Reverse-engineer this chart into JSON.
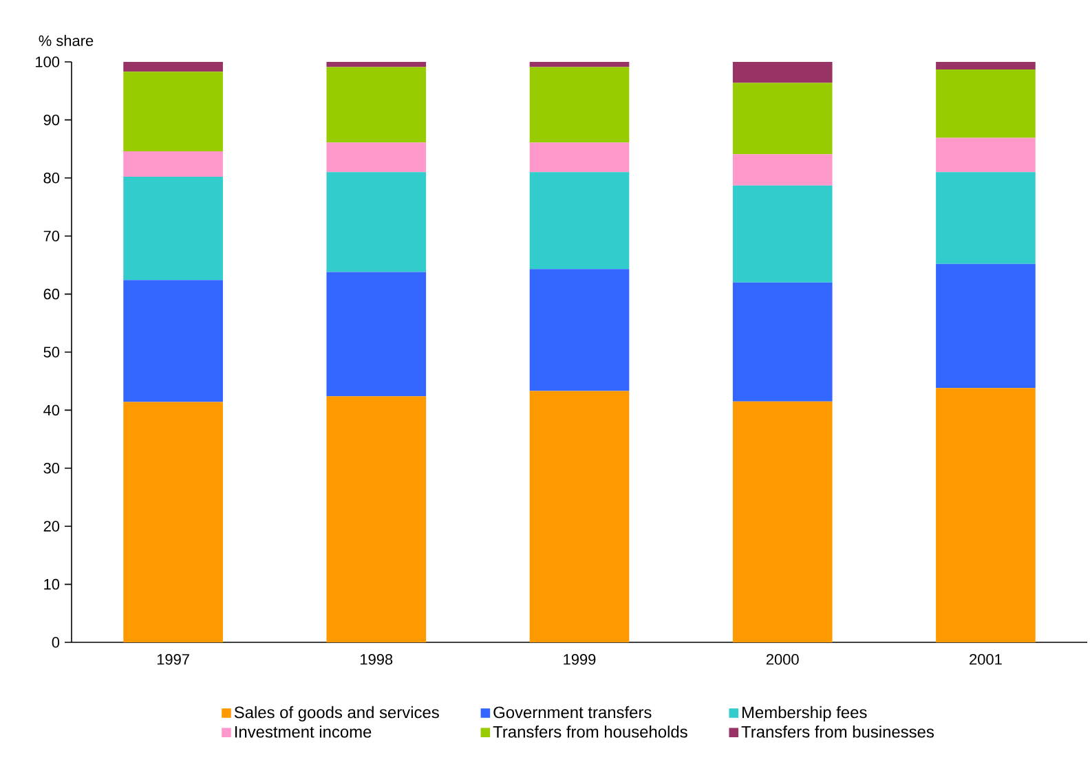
{
  "chart_data": {
    "type": "bar",
    "stacked": true,
    "ylabel": "% share",
    "categories": [
      "1997",
      "1998",
      "1999",
      "2000",
      "2001"
    ],
    "series": [
      {
        "name": "Sales of goods and services",
        "color": "#ff9900",
        "values": [
          41.4,
          42.4,
          43.3,
          41.5,
          43.8
        ]
      },
      {
        "name": "Government transfers",
        "color": "#3366ff",
        "values": [
          21.0,
          21.4,
          21.0,
          20.5,
          21.4
        ]
      },
      {
        "name": "Membership fees",
        "color": "#33cccc",
        "values": [
          17.8,
          17.2,
          16.7,
          16.7,
          15.8
        ]
      },
      {
        "name": "Investment income",
        "color": "#ff99cc",
        "values": [
          4.4,
          5.1,
          5.1,
          5.4,
          5.9
        ]
      },
      {
        "name": "Transfers from households",
        "color": "#99cc00",
        "values": [
          13.7,
          13.0,
          13.0,
          12.3,
          11.8
        ]
      },
      {
        "name": "Transfers from businesses",
        "color": "#993366",
        "values": [
          1.7,
          0.9,
          0.9,
          3.6,
          1.3
        ]
      }
    ],
    "ylim": [
      0,
      100
    ],
    "yticks": [
      0,
      10,
      20,
      30,
      40,
      50,
      60,
      70,
      80,
      90,
      100
    ],
    "grid": false,
    "legend": "bottom"
  }
}
